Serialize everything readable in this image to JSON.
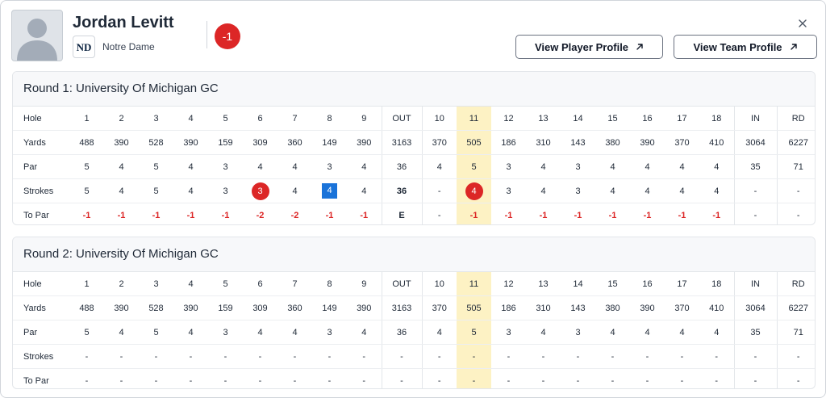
{
  "player": {
    "name": "Jordan Levitt",
    "team": "Notre Dame",
    "score_to_par": "-1"
  },
  "header": {
    "view_player_profile": "View Player Profile",
    "view_team_profile": "View Team Profile"
  },
  "colors": {
    "under_par": "#dc2626",
    "eagle": "#dc2626",
    "bogey": "#1a73d9",
    "highlight": "#fdf2c4"
  },
  "columns": [
    "Hole",
    "1",
    "2",
    "3",
    "4",
    "5",
    "6",
    "7",
    "8",
    "9",
    "OUT",
    "10",
    "11",
    "12",
    "13",
    "14",
    "15",
    "16",
    "17",
    "18",
    "IN",
    "RD"
  ],
  "rounds": [
    {
      "title": "Round 1: University Of Michigan GC",
      "yards": [
        "488",
        "390",
        "528",
        "390",
        "159",
        "309",
        "360",
        "149",
        "390",
        "3163",
        "370",
        "505",
        "186",
        "310",
        "143",
        "380",
        "390",
        "370",
        "410",
        "3064",
        "6227"
      ],
      "par": [
        "5",
        "4",
        "5",
        "4",
        "3",
        "4",
        "4",
        "3",
        "4",
        "36",
        "4",
        "5",
        "3",
        "4",
        "3",
        "4",
        "4",
        "4",
        "4",
        "35",
        "71"
      ],
      "strokes": [
        "5",
        "4",
        "5",
        "4",
        "3",
        "3",
        "4",
        "4",
        "4",
        "36",
        "-",
        "4",
        "3",
        "4",
        "3",
        "4",
        "4",
        "4",
        "4",
        "-",
        "-"
      ],
      "to_par": [
        "-1",
        "-1",
        "-1",
        "-1",
        "-1",
        "-2",
        "-2",
        "-1",
        "-1",
        "E",
        "-",
        "-1",
        "-1",
        "-1",
        "-1",
        "-1",
        "-1",
        "-1",
        "-1",
        "-",
        "-"
      ]
    },
    {
      "title": "Round 2: University Of Michigan GC",
      "yards": [
        "488",
        "390",
        "528",
        "390",
        "159",
        "309",
        "360",
        "149",
        "390",
        "3163",
        "370",
        "505",
        "186",
        "310",
        "143",
        "380",
        "390",
        "370",
        "410",
        "3064",
        "6227"
      ],
      "par": [
        "5",
        "4",
        "5",
        "4",
        "3",
        "4",
        "4",
        "3",
        "4",
        "36",
        "4",
        "5",
        "3",
        "4",
        "3",
        "4",
        "4",
        "4",
        "4",
        "35",
        "71"
      ],
      "strokes": [
        "-",
        "-",
        "-",
        "-",
        "-",
        "-",
        "-",
        "-",
        "-",
        "-",
        "-",
        "-",
        "-",
        "-",
        "-",
        "-",
        "-",
        "-",
        "-",
        "-",
        "-"
      ],
      "to_par": [
        "-",
        "-",
        "-",
        "-",
        "-",
        "-",
        "-",
        "-",
        "-",
        "-",
        "-",
        "-",
        "-",
        "-",
        "-",
        "-",
        "-",
        "-",
        "-",
        "-",
        "-"
      ]
    }
  ],
  "row_labels": {
    "hole": "Hole",
    "yards": "Yards",
    "par": "Par",
    "strokes": "Strokes",
    "to_par": "To Par"
  },
  "highlighted_hole": "11"
}
